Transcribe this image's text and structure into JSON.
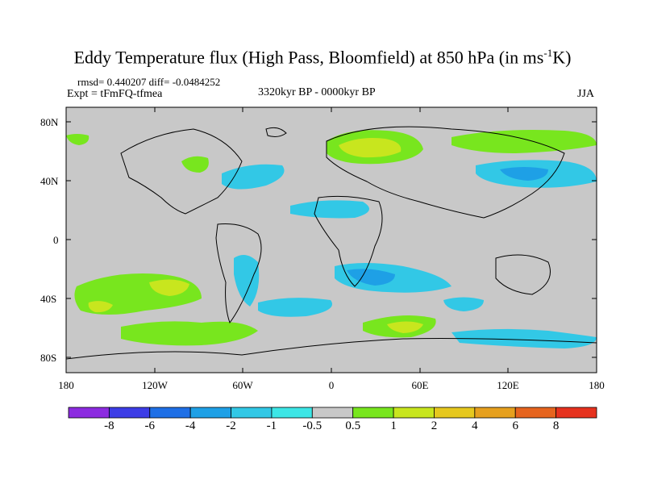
{
  "title": {
    "main": "Eddy Temperature flux (High Pass, Bloomfield) at 850 hPa (in ms",
    "sup": "-1",
    "tail": "K)"
  },
  "stats": {
    "rmsd_diff": "rmsd= 0.440207 diff= -0.0484252",
    "expt": "Expt = tFmFQ-tfmea",
    "period": "3320kyr BP - 0000kyr BP",
    "season": "JJA"
  },
  "axes": {
    "lat_labels": [
      "80N",
      "40N",
      "0",
      "40S",
      "80S"
    ],
    "lon_labels": [
      "180",
      "120W",
      "60W",
      "0",
      "60E",
      "120E",
      "180"
    ]
  },
  "colorbar": {
    "labels": [
      "-8",
      "-6",
      "-4",
      "-2",
      "-1",
      "-0.5",
      "0.5",
      "1",
      "2",
      "4",
      "6",
      "8"
    ],
    "colors": [
      "#8c2be0",
      "#3c3ce6",
      "#1e6fe6",
      "#1ea0e6",
      "#32c8e6",
      "#3ce6e6",
      "#c8c8c8",
      "#78e61e",
      "#c8e61e",
      "#e6c81e",
      "#e6a01e",
      "#e6641e",
      "#e6321e"
    ]
  },
  "chart_data": {
    "type": "heatmap",
    "title": "Eddy Temperature flux (High Pass, Bloomfield) at 850 hPa (in ms-1K)",
    "variable": "eddy temperature flux difference",
    "units": "ms-1K",
    "season": "JJA",
    "contour_levels": [
      -8,
      -6,
      -4,
      -2,
      -1,
      -0.5,
      0.5,
      1,
      2,
      4,
      6,
      8
    ],
    "lon_range": [
      -180,
      180
    ],
    "lat_range": [
      -90,
      90
    ],
    "regions": [
      {
        "name": "North Atlantic / Scandinavia",
        "sign": "positive",
        "peak": 2
      },
      {
        "name": "North Pacific / East Asia",
        "sign": "negative",
        "peak": -2
      },
      {
        "name": "Western North Atlantic",
        "sign": "negative",
        "peak": -1
      },
      {
        "name": "South Pacific midlatitudes",
        "sign": "positive",
        "peak": 2
      },
      {
        "name": "South Atlantic / Southern Africa",
        "sign": "negative",
        "peak": -2
      },
      {
        "name": "Southern Ocean near 60S",
        "sign": "positive",
        "peak": 2
      }
    ]
  }
}
